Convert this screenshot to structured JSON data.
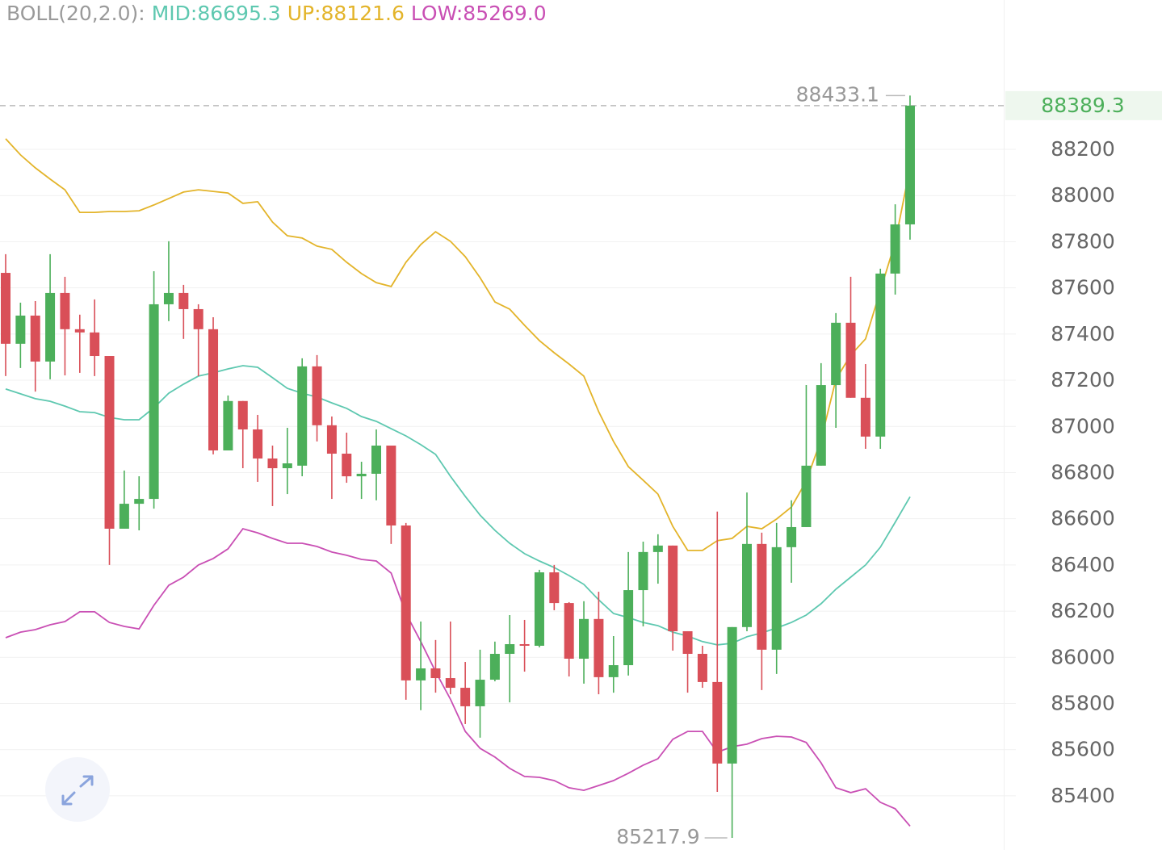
{
  "chart_data": {
    "type": "candlestick",
    "legend": {
      "title": "BOLL(20,2.0):",
      "entries": [
        "MID:86695.3",
        "UP:88121.6",
        "LOW:85269.0"
      ],
      "title_color": "#9a9a9a"
    },
    "up_color": "#4caf5a",
    "down_color": "#d94f58",
    "ohlc": [
      [
        87665,
        87746,
        87218,
        87358
      ],
      [
        87358,
        87536,
        87253,
        87480
      ],
      [
        87480,
        87543,
        87151,
        87281
      ],
      [
        87281,
        87746,
        87204,
        87578
      ],
      [
        87578,
        87648,
        87221,
        87421
      ],
      [
        87421,
        87484,
        87232,
        87407
      ],
      [
        87407,
        87550,
        87218,
        87305
      ],
      [
        87305,
        87305,
        86400,
        86557
      ],
      [
        86557,
        86809,
        86557,
        86665
      ],
      [
        86665,
        86784,
        86550,
        86686
      ],
      [
        86686,
        87672,
        86644,
        87529
      ],
      [
        87529,
        87802,
        87456,
        87578
      ],
      [
        87578,
        87613,
        87379,
        87508
      ],
      [
        87508,
        87529,
        87218,
        87421
      ],
      [
        87421,
        87473,
        86879,
        86896
      ],
      [
        86896,
        87134,
        86896,
        87110
      ],
      [
        87110,
        87110,
        86819,
        86987
      ],
      [
        86987,
        87050,
        86760,
        86861
      ],
      [
        86861,
        86917,
        86655,
        86819
      ],
      [
        86819,
        86994,
        86707,
        86840
      ],
      [
        86830,
        87295,
        86784,
        87260
      ],
      [
        87260,
        87309,
        86935,
        87005
      ],
      [
        87005,
        87043,
        86686,
        86882
      ],
      [
        86882,
        86973,
        86756,
        86784
      ],
      [
        86784,
        86847,
        86686,
        86795
      ],
      [
        86795,
        86987,
        86680,
        86917
      ],
      [
        86917,
        86917,
        86491,
        86571
      ],
      [
        86571,
        86582,
        85816,
        85900
      ],
      [
        85900,
        86155,
        85771,
        85952
      ],
      [
        85952,
        86075,
        85847,
        85910
      ],
      [
        85910,
        86155,
        85840,
        85868
      ],
      [
        85868,
        85980,
        85711,
        85788
      ],
      [
        85788,
        86033,
        85652,
        85903
      ],
      [
        85903,
        86068,
        85896,
        86015
      ],
      [
        86015,
        86183,
        85805,
        86057
      ],
      [
        86057,
        86162,
        85938,
        86050
      ],
      [
        86050,
        86379,
        86043,
        86368
      ],
      [
        86368,
        86400,
        86204,
        86235
      ],
      [
        86235,
        86239,
        85917,
        85994
      ],
      [
        85994,
        86243,
        85886,
        86166
      ],
      [
        86166,
        86284,
        85840,
        85914
      ],
      [
        85914,
        86092,
        85847,
        85966
      ],
      [
        85966,
        86456,
        85921,
        86291
      ],
      [
        86291,
        86501,
        86134,
        86456
      ],
      [
        86456,
        86533,
        86319,
        86484
      ],
      [
        86484,
        86484,
        86029,
        86113
      ],
      [
        86113,
        86113,
        85847,
        86015
      ],
      [
        86015,
        86050,
        85868,
        85893
      ],
      [
        85893,
        86631,
        85417,
        85540
      ],
      [
        85540,
        86131,
        85217.9,
        86131
      ],
      [
        86131,
        86714,
        86113,
        86491
      ],
      [
        86491,
        86540,
        85858,
        86033
      ],
      [
        86033,
        86582,
        85928,
        86477
      ],
      [
        86477,
        86680,
        86323,
        86564
      ],
      [
        86564,
        87179,
        86564,
        86830
      ],
      [
        86830,
        87274,
        86830,
        87179
      ],
      [
        87179,
        87491,
        86994,
        87449
      ],
      [
        87449,
        87648,
        87124,
        87124
      ],
      [
        87124,
        87270,
        86903,
        86956
      ],
      [
        86956,
        87683,
        86903,
        87662
      ],
      [
        87662,
        87962,
        87571,
        87875
      ],
      [
        87875,
        88433.1,
        87809,
        88389.3
      ]
    ],
    "bands": [
      {
        "color": "#5ec8b0",
        "values": [
          87162,
          87141,
          87120,
          87109,
          87088,
          87064,
          87060,
          87039,
          87029,
          87029,
          87081,
          87144,
          87183,
          87218,
          87232,
          87249,
          87263,
          87256,
          87211,
          87165,
          87144,
          87127,
          87102,
          87078,
          87043,
          87022,
          86990,
          86959,
          86921,
          86879,
          86784,
          86697,
          86616,
          86550,
          86494,
          86449,
          86417,
          86389,
          86354,
          86316,
          86249,
          86190,
          86172,
          86151,
          86137,
          86109,
          86092,
          86068,
          86054,
          86061,
          86089,
          86106,
          86127,
          86151,
          86183,
          86232,
          86295,
          86347,
          86400,
          86477,
          86585,
          86695.3
        ]
      },
      {
        "color": "#e3b42a",
        "values": [
          88246,
          88176,
          88120,
          88071,
          88025,
          87927,
          87927,
          87931,
          87931,
          87934,
          87959,
          87987,
          88015,
          88025,
          88018,
          88011,
          87966,
          87973,
          87885,
          87826,
          87816,
          87781,
          87767,
          87711,
          87662,
          87623,
          87606,
          87711,
          87788,
          87843,
          87802,
          87735,
          87644,
          87539,
          87508,
          87438,
          87372,
          87319,
          87270,
          87218,
          87064,
          86935,
          86826,
          86767,
          86707,
          86567,
          86463,
          86463,
          86505,
          86515,
          86567,
          86557,
          86599,
          86651,
          86763,
          86942,
          87204,
          87309,
          87379,
          87588,
          87798,
          88121.6
        ]
      },
      {
        "color": "#c94fb4",
        "values": [
          86085,
          86109,
          86120,
          86141,
          86155,
          86197,
          86197,
          86151,
          86134,
          86123,
          86225,
          86312,
          86347,
          86400,
          86428,
          86470,
          86557,
          86539,
          86515,
          86494,
          86494,
          86480,
          86456,
          86442,
          86424,
          86417,
          86365,
          86190,
          86068,
          85938,
          85819,
          85679,
          85606,
          85568,
          85519,
          85484,
          85480,
          85466,
          85435,
          85424,
          85445,
          85466,
          85498,
          85533,
          85561,
          85645,
          85679,
          85679,
          85589,
          85613,
          85624,
          85648,
          85658,
          85655,
          85631,
          85543,
          85435,
          85414,
          85431,
          85372,
          85344,
          85269
        ]
      }
    ],
    "ylim": [
      85165.5,
      88846.8
    ],
    "yticks": [
      85400,
      85600,
      85800,
      86000,
      86200,
      86400,
      86600,
      86800,
      87000,
      87200,
      87400,
      87600,
      87800,
      88000,
      88200
    ],
    "grid": true
  }
}
